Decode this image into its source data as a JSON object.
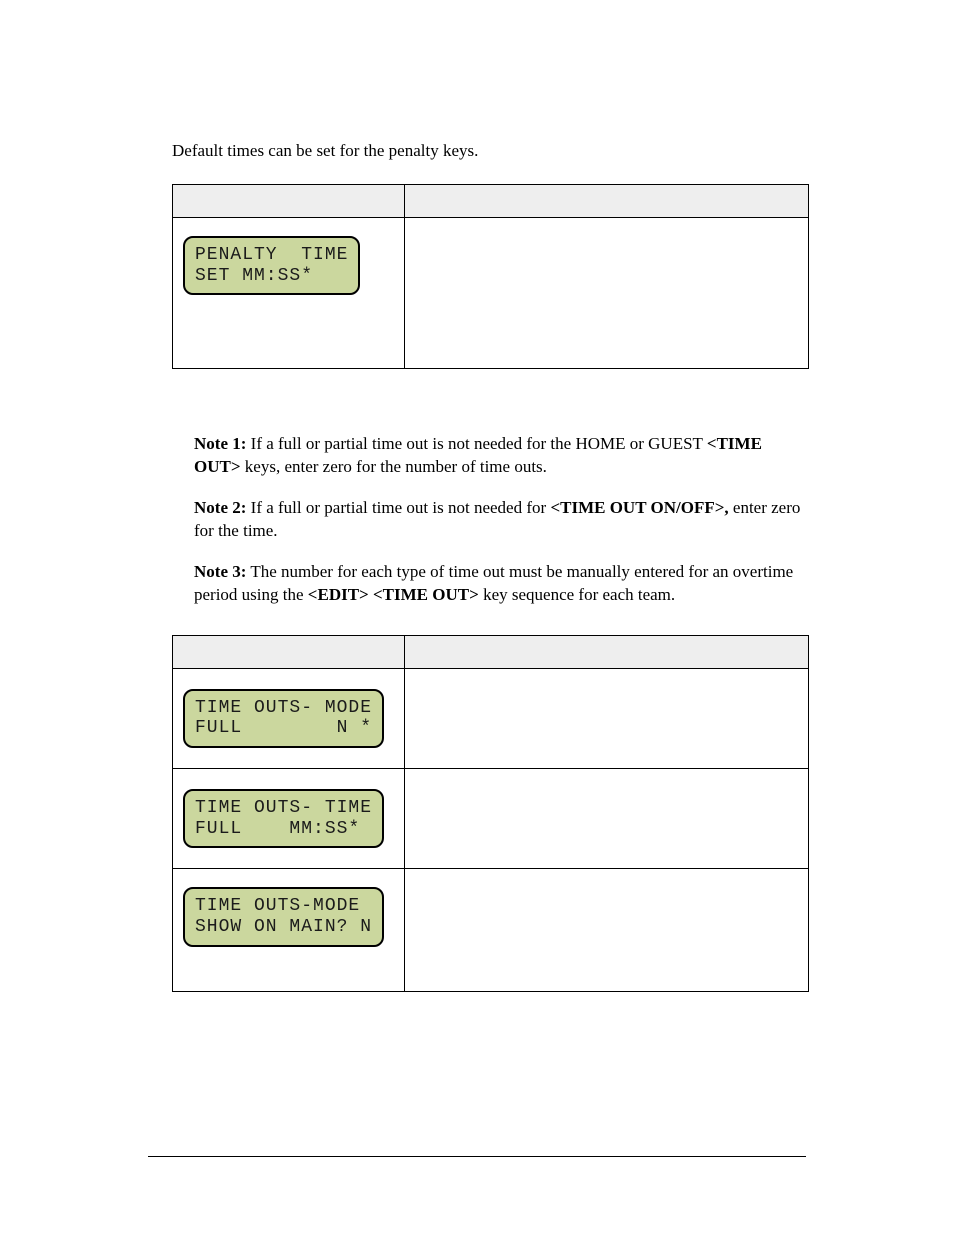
{
  "intro": "Default times can be set for the penalty keys.",
  "table1": {
    "rows": [
      {
        "lcd_line1": "PENALTY  TIME",
        "lcd_line2": "SET MM:SS*",
        "right": ""
      }
    ]
  },
  "notes": {
    "n1_label": "Note 1:",
    "n1_a": " If a full or partial time out is not needed for the HOME or GUEST ",
    "n1_key": "<TIME OUT>",
    "n1_b": " keys, enter zero for the number of time outs.",
    "n2_label": "Note 2:",
    "n2_a": " If a full or partial time out is not needed for ",
    "n2_key": "<TIME OUT ON/OFF>,",
    "n2_b": " enter zero for the time.",
    "n3_label": "Note 3:",
    "n3_a": " The number for each type of time out must be manually entered for an overtime period using the ",
    "n3_key1": "<EDIT>",
    "n3_mid": " ",
    "n3_key2": "<TIME OUT>",
    "n3_b": " key sequence for each team."
  },
  "table2": {
    "rows": [
      {
        "lcd_line1": "TIME OUTS- MODE",
        "lcd_line2": "FULL        N *",
        "right": ""
      },
      {
        "lcd_line1": "TIME OUTS- TIME",
        "lcd_line2": "FULL    MM:SS*",
        "right": ""
      },
      {
        "lcd_line1": "TIME OUTS-MODE ",
        "lcd_line2": "SHOW ON MAIN? N",
        "right": ""
      }
    ]
  },
  "colors": {
    "lcd_bg": "#cbd79e",
    "header_bg": "#eeeeee",
    "text": "#000000",
    "page_bg": "#ffffff"
  }
}
